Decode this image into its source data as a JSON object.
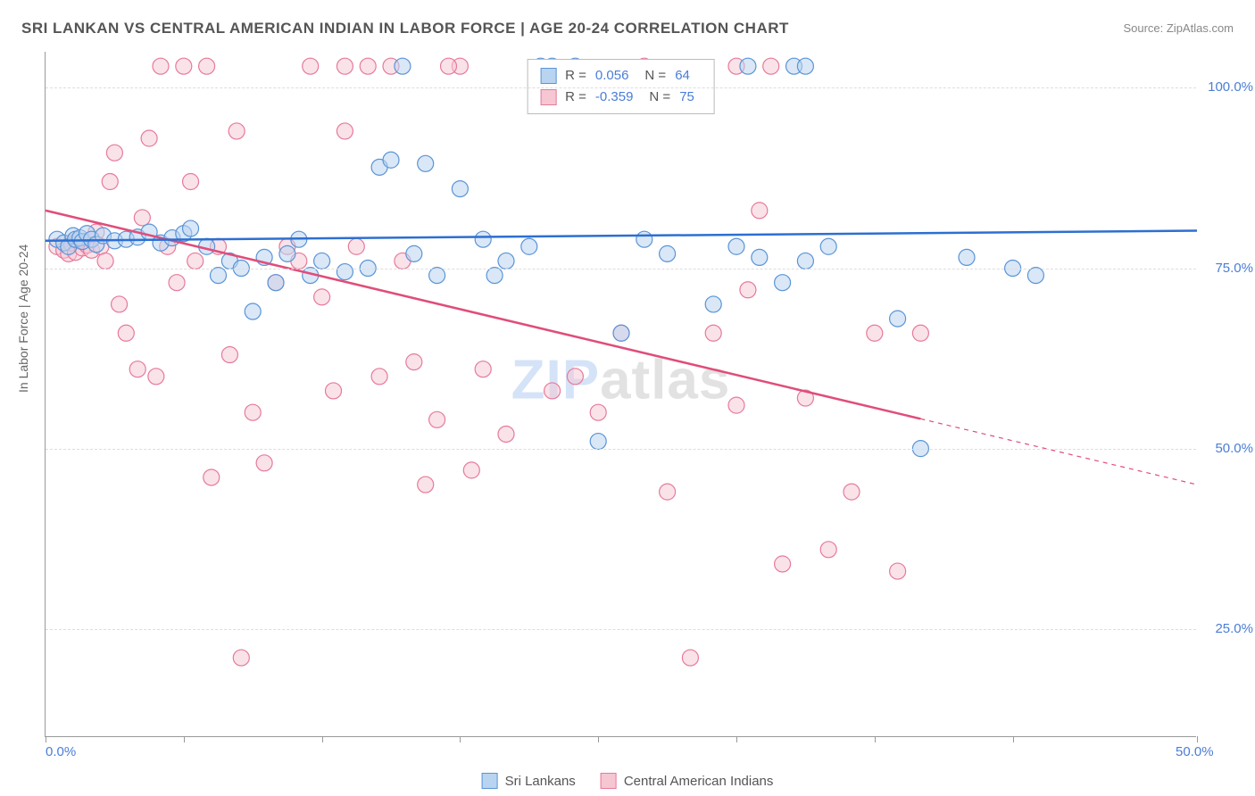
{
  "title": "SRI LANKAN VS CENTRAL AMERICAN INDIAN IN LABOR FORCE | AGE 20-24 CORRELATION CHART",
  "source": "Source: ZipAtlas.com",
  "y_axis_label": "In Labor Force | Age 20-24",
  "watermark_a": "ZIP",
  "watermark_b": "atlas",
  "chart": {
    "type": "scatter",
    "background_color": "#ffffff",
    "grid_color": "#dddddd",
    "axis_color": "#999999",
    "tick_label_color": "#4a7dd6",
    "xlim": [
      0,
      50
    ],
    "ylim": [
      10,
      105
    ],
    "x_ticks": [
      0,
      6,
      12,
      18,
      24,
      30,
      36,
      42,
      50
    ],
    "x_tick_labels": {
      "0": "0.0%",
      "50": "50.0%"
    },
    "y_ticks": [
      25,
      50,
      75,
      100
    ],
    "y_tick_labels": {
      "25": "25.0%",
      "50": "50.0%",
      "75": "75.0%",
      "100": "100.0%"
    },
    "marker_radius": 9,
    "marker_stroke_width": 1.2,
    "line_width": 2.5,
    "series": [
      {
        "name": "Sri Lankans",
        "fill": "#b9d4f0",
        "stroke": "#5a94d6",
        "line_color": "#2d6fd1",
        "fill_opacity": 0.55,
        "r": 0.056,
        "n": 64,
        "trend": {
          "x1": 0,
          "y1": 78.8,
          "x2": 50,
          "y2": 80.2,
          "solid_end_x": 50
        },
        "points": [
          [
            0.5,
            79
          ],
          [
            0.8,
            78.5
          ],
          [
            1,
            78
          ],
          [
            1.2,
            79.5
          ],
          [
            1.3,
            79
          ],
          [
            1.5,
            79.2
          ],
          [
            1.6,
            78.7
          ],
          [
            1.8,
            79.8
          ],
          [
            2,
            79
          ],
          [
            2.2,
            78.3
          ],
          [
            2.5,
            79.5
          ],
          [
            3,
            78.8
          ],
          [
            3.5,
            79
          ],
          [
            4,
            79.3
          ],
          [
            4.5,
            80
          ],
          [
            5,
            78.5
          ],
          [
            5.5,
            79.2
          ],
          [
            6,
            79.8
          ],
          [
            6.3,
            80.5
          ],
          [
            7,
            78
          ],
          [
            7.5,
            74
          ],
          [
            8,
            76
          ],
          [
            8.5,
            75
          ],
          [
            9,
            69
          ],
          [
            9.5,
            76.5
          ],
          [
            10,
            73
          ],
          [
            10.5,
            77
          ],
          [
            11,
            79
          ],
          [
            11.5,
            74
          ],
          [
            12,
            76
          ],
          [
            13,
            74.5
          ],
          [
            14,
            75
          ],
          [
            14.5,
            89
          ],
          [
            15,
            90
          ],
          [
            15.5,
            103
          ],
          [
            16,
            77
          ],
          [
            16.5,
            89.5
          ],
          [
            17,
            74
          ],
          [
            18,
            86
          ],
          [
            19,
            79
          ],
          [
            19.5,
            74
          ],
          [
            20,
            76
          ],
          [
            21,
            78
          ],
          [
            21.5,
            103
          ],
          [
            22,
            103
          ],
          [
            23,
            103
          ],
          [
            24,
            51
          ],
          [
            25,
            66
          ],
          [
            26,
            79
          ],
          [
            27,
            77
          ],
          [
            29,
            70
          ],
          [
            30,
            78
          ],
          [
            30.5,
            103
          ],
          [
            31,
            76.5
          ],
          [
            32,
            73
          ],
          [
            33,
            76
          ],
          [
            34,
            78
          ],
          [
            37,
            68
          ],
          [
            38,
            50
          ],
          [
            40,
            76.5
          ],
          [
            42,
            75
          ],
          [
            43,
            74
          ],
          [
            32.5,
            103
          ],
          [
            33,
            103
          ]
        ]
      },
      {
        "name": "Central American Indians",
        "fill": "#f6c6d3",
        "stroke": "#e67a9a",
        "line_color": "#e04d7a",
        "fill_opacity": 0.5,
        "r": -0.359,
        "n": 75,
        "trend": {
          "x1": 0,
          "y1": 83,
          "x2": 50,
          "y2": 45,
          "solid_end_x": 38
        },
        "points": [
          [
            0.5,
            78
          ],
          [
            0.8,
            77.5
          ],
          [
            1,
            77
          ],
          [
            1.1,
            78.5
          ],
          [
            1.3,
            77.2
          ],
          [
            1.4,
            78.8
          ],
          [
            1.6,
            77.8
          ],
          [
            1.8,
            78.2
          ],
          [
            2,
            77.5
          ],
          [
            2.2,
            80
          ],
          [
            2.4,
            78
          ],
          [
            2.6,
            76
          ],
          [
            2.8,
            87
          ],
          [
            3,
            91
          ],
          [
            3.2,
            70
          ],
          [
            3.5,
            66
          ],
          [
            4,
            61
          ],
          [
            4.2,
            82
          ],
          [
            4.5,
            93
          ],
          [
            5,
            103
          ],
          [
            5.3,
            78
          ],
          [
            5.7,
            73
          ],
          [
            6,
            103
          ],
          [
            6.3,
            87
          ],
          [
            6.5,
            76
          ],
          [
            7,
            103
          ],
          [
            7.2,
            46
          ],
          [
            7.5,
            78
          ],
          [
            8,
            63
          ],
          [
            8.3,
            94
          ],
          [
            8.5,
            21
          ],
          [
            9,
            55
          ],
          [
            9.5,
            48
          ],
          [
            10,
            73
          ],
          [
            10.5,
            78
          ],
          [
            11,
            76
          ],
          [
            11.5,
            103
          ],
          [
            12,
            71
          ],
          [
            12.5,
            58
          ],
          [
            13,
            103
          ],
          [
            13.5,
            78
          ],
          [
            14,
            103
          ],
          [
            14.5,
            60
          ],
          [
            15,
            103
          ],
          [
            15.5,
            76
          ],
          [
            16,
            62
          ],
          [
            16.5,
            45
          ],
          [
            17,
            54
          ],
          [
            18,
            103
          ],
          [
            18.5,
            47
          ],
          [
            19,
            61
          ],
          [
            20,
            52
          ],
          [
            22,
            58
          ],
          [
            23,
            60
          ],
          [
            24,
            55
          ],
          [
            25,
            66
          ],
          [
            26,
            103
          ],
          [
            27,
            44
          ],
          [
            28,
            21
          ],
          [
            29,
            66
          ],
          [
            30,
            103
          ],
          [
            30.5,
            72
          ],
          [
            31,
            83
          ],
          [
            31.5,
            103
          ],
          [
            32,
            34
          ],
          [
            33,
            57
          ],
          [
            34,
            36
          ],
          [
            35,
            44
          ],
          [
            36,
            66
          ],
          [
            37,
            33
          ],
          [
            38,
            66
          ],
          [
            30,
            56
          ],
          [
            17.5,
            103
          ],
          [
            13,
            94
          ],
          [
            4.8,
            60
          ]
        ]
      }
    ],
    "legend": {
      "stats_rows": [
        {
          "swatch_fill": "#b9d4f0",
          "swatch_stroke": "#5a94d6",
          "r_label": "R = ",
          "r_val": "0.056",
          "n_label": "N = ",
          "n_val": "64"
        },
        {
          "swatch_fill": "#f6c6d3",
          "swatch_stroke": "#e67a9a",
          "r_label": "R = ",
          "r_val": "-0.359",
          "n_label": "N = ",
          "n_val": "75"
        }
      ],
      "bottom": [
        {
          "swatch_fill": "#b9d4f0",
          "swatch_stroke": "#5a94d6",
          "label": "Sri Lankans"
        },
        {
          "swatch_fill": "#f6c6d3",
          "swatch_stroke": "#e67a9a",
          "label": "Central American Indians"
        }
      ]
    }
  }
}
